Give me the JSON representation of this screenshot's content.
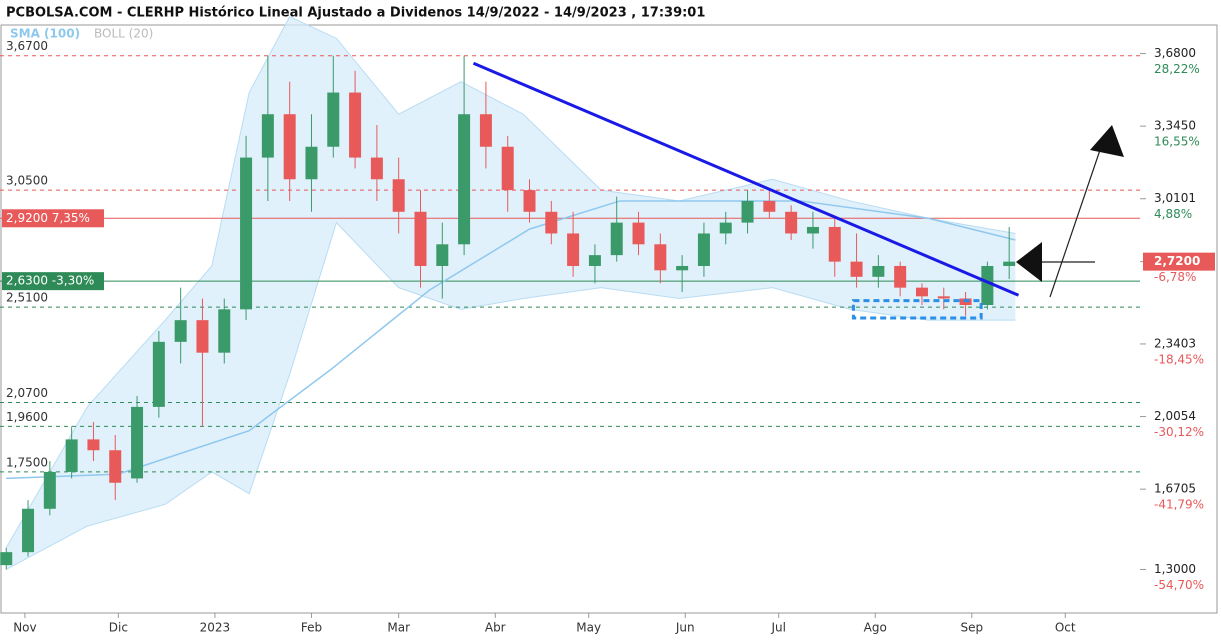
{
  "chart_data": {
    "type": "candlestick",
    "title": "PCBOLSA.COM - CLERHP Histórico Lineal Ajustado a Dividenos 14/9/2022 - 14/9/2023 , 17:39:01",
    "legend": [
      "SMA (100)",
      "BOLL (20)"
    ],
    "xlim": [
      -8,
      358
    ],
    "xticks": [
      {
        "value": 0,
        "label": "Nov"
      },
      {
        "value": 30,
        "label": "Dic"
      },
      {
        "value": 61,
        "label": "2023"
      },
      {
        "value": 92,
        "label": "Feb"
      },
      {
        "value": 120,
        "label": "Mar"
      },
      {
        "value": 151,
        "label": "Abr"
      },
      {
        "value": 181,
        "label": "May"
      },
      {
        "value": 212,
        "label": "Jun"
      },
      {
        "value": 242,
        "label": "Jul"
      },
      {
        "value": 273,
        "label": "Ago"
      },
      {
        "value": 304,
        "label": "Sep"
      },
      {
        "value": 334,
        "label": "Oct"
      }
    ],
    "ylim": [
      1.09,
      3.89
    ],
    "yticks": [
      {
        "value": 3.68,
        "label": "3,6800",
        "change": "28,22%",
        "color": "#2e8b57"
      },
      {
        "value": 3.345,
        "label": "3,3450",
        "change": "16,55%",
        "color": "#2e8b57"
      },
      {
        "value": 3.0101,
        "label": "3,0101",
        "change": "4,88%",
        "color": "#2e8b57"
      },
      {
        "value": 2.72,
        "label": "2,7200",
        "change": "-6,78%",
        "color": "#e8595a"
      },
      {
        "value": 2.3403,
        "label": "2,3403",
        "change": "-18,45%",
        "color": "#e8595a"
      },
      {
        "value": 2.0054,
        "label": "2,0054",
        "change": "-30,12%",
        "color": "#e8595a"
      },
      {
        "value": 1.6705,
        "label": "1,6705",
        "change": "-41,79%",
        "color": "#e8595a"
      },
      {
        "value": 1.3,
        "label": "1,3000",
        "change": "-54,70%",
        "color": "#e8595a"
      }
    ],
    "last": 2.72,
    "levels": [
      {
        "value": 3.67,
        "label": "3,6700",
        "color": "#e8595a",
        "style": "dashed"
      },
      {
        "value": 3.05,
        "label": "3,0500",
        "color": "#e8595a",
        "style": "dashed"
      },
      {
        "value": 2.92,
        "label": "2,9200  7,35%",
        "color": "#e8595a",
        "style": "solid",
        "boxed": true
      },
      {
        "value": 2.63,
        "label": "2,6300  -3,30%",
        "color": "#2e8b57",
        "style": "solid",
        "boxed": true
      },
      {
        "value": 2.51,
        "label": "2,5100",
        "color": "#2e8b57",
        "style": "dashed"
      },
      {
        "value": 2.07,
        "label": "2,0700",
        "color": "#2e8b57",
        "style": "dashed"
      },
      {
        "value": 1.96,
        "label": "1,9600",
        "color": "#2e8b57",
        "style": "dashed"
      },
      {
        "value": 1.75,
        "label": "1,7500",
        "color": "#2e8b57",
        "style": "dashed"
      }
    ],
    "candles": {
      "up_color": "#3a9a6a",
      "down_color": "#e8595a",
      "x": [
        -6,
        1,
        8,
        15,
        22,
        29,
        36,
        43,
        50,
        57,
        64,
        71,
        78,
        85,
        92,
        99,
        106,
        113,
        120,
        127,
        134,
        141,
        148,
        155,
        162,
        169,
        176,
        183,
        190,
        197,
        204,
        211,
        218,
        225,
        232,
        239,
        246,
        253,
        260,
        267,
        274,
        281,
        288,
        295,
        302,
        309,
        316
      ],
      "open": [
        1.32,
        1.38,
        1.58,
        1.75,
        1.9,
        1.85,
        1.72,
        2.05,
        2.35,
        2.45,
        2.3,
        2.5,
        3.2,
        3.4,
        3.1,
        3.25,
        3.5,
        3.2,
        3.1,
        2.95,
        2.7,
        2.8,
        3.4,
        3.25,
        3.05,
        2.95,
        2.85,
        2.7,
        2.75,
        2.9,
        2.8,
        2.68,
        2.7,
        2.85,
        2.9,
        3.0,
        2.95,
        2.85,
        2.88,
        2.72,
        2.65,
        2.7,
        2.6,
        2.56,
        2.55,
        2.52,
        2.7
      ],
      "high": [
        1.4,
        1.62,
        1.8,
        1.96,
        1.98,
        1.92,
        2.1,
        2.4,
        2.6,
        2.55,
        2.55,
        3.3,
        3.67,
        3.55,
        3.4,
        3.67,
        3.6,
        3.35,
        3.2,
        3.05,
        2.9,
        3.67,
        3.55,
        3.3,
        3.1,
        3.0,
        2.95,
        2.8,
        3.02,
        2.95,
        2.85,
        2.75,
        2.9,
        2.95,
        3.05,
        3.06,
        2.98,
        2.95,
        2.92,
        2.85,
        2.75,
        2.72,
        2.62,
        2.6,
        2.58,
        2.72,
        2.88
      ],
      "low": [
        1.3,
        1.36,
        1.55,
        1.72,
        1.8,
        1.62,
        1.7,
        2.0,
        2.25,
        1.96,
        2.25,
        2.45,
        3.0,
        3.0,
        2.95,
        3.2,
        3.15,
        3.0,
        2.85,
        2.6,
        2.55,
        2.75,
        3.15,
        2.95,
        2.9,
        2.8,
        2.65,
        2.62,
        2.72,
        2.75,
        2.62,
        2.58,
        2.65,
        2.8,
        2.85,
        2.92,
        2.82,
        2.78,
        2.65,
        2.6,
        2.6,
        2.56,
        2.52,
        2.5,
        2.47,
        2.5,
        2.64
      ],
      "close": [
        1.38,
        1.58,
        1.75,
        1.9,
        1.85,
        1.7,
        2.05,
        2.35,
        2.45,
        2.3,
        2.5,
        3.2,
        3.4,
        3.1,
        3.25,
        3.5,
        3.2,
        3.1,
        2.95,
        2.7,
        2.8,
        3.4,
        3.25,
        3.05,
        2.95,
        2.85,
        2.7,
        2.75,
        2.9,
        2.8,
        2.68,
        2.7,
        2.85,
        2.9,
        3.0,
        2.95,
        2.85,
        2.88,
        2.72,
        2.65,
        2.7,
        2.6,
        2.56,
        2.55,
        2.52,
        2.7,
        2.72
      ]
    },
    "sma": {
      "name": "SMA (100)",
      "color": "#8fc8ee",
      "x": [
        -6,
        30,
        72,
        98,
        130,
        162,
        191,
        249,
        290,
        318
      ],
      "values": [
        1.72,
        1.74,
        1.94,
        2.22,
        2.59,
        2.87,
        3.0,
        3.0,
        2.92,
        2.82
      ]
    },
    "boll": {
      "name": "BOLL (20)",
      "color": "#d6ecf9",
      "x": [
        -6,
        20,
        45,
        60,
        72,
        85,
        100,
        120,
        140,
        160,
        185,
        210,
        240,
        265,
        290,
        318
      ],
      "upper": [
        1.4,
        2.05,
        2.45,
        2.7,
        3.5,
        3.85,
        3.75,
        3.4,
        3.55,
        3.4,
        3.05,
        3.0,
        3.1,
        3.0,
        2.92,
        2.85
      ],
      "lower": [
        1.3,
        1.5,
        1.6,
        1.75,
        1.65,
        2.2,
        2.9,
        2.6,
        2.5,
        2.55,
        2.6,
        2.55,
        2.6,
        2.5,
        2.45,
        2.45
      ]
    },
    "trendline": {
      "color": "#1a1ae6",
      "x": [
        144,
        319
      ],
      "y": [
        3.635,
        2.565
      ]
    },
    "box": {
      "color": "#2b8fe8",
      "x": [
        266,
        307
      ],
      "y": [
        2.46,
        2.54
      ]
    }
  }
}
